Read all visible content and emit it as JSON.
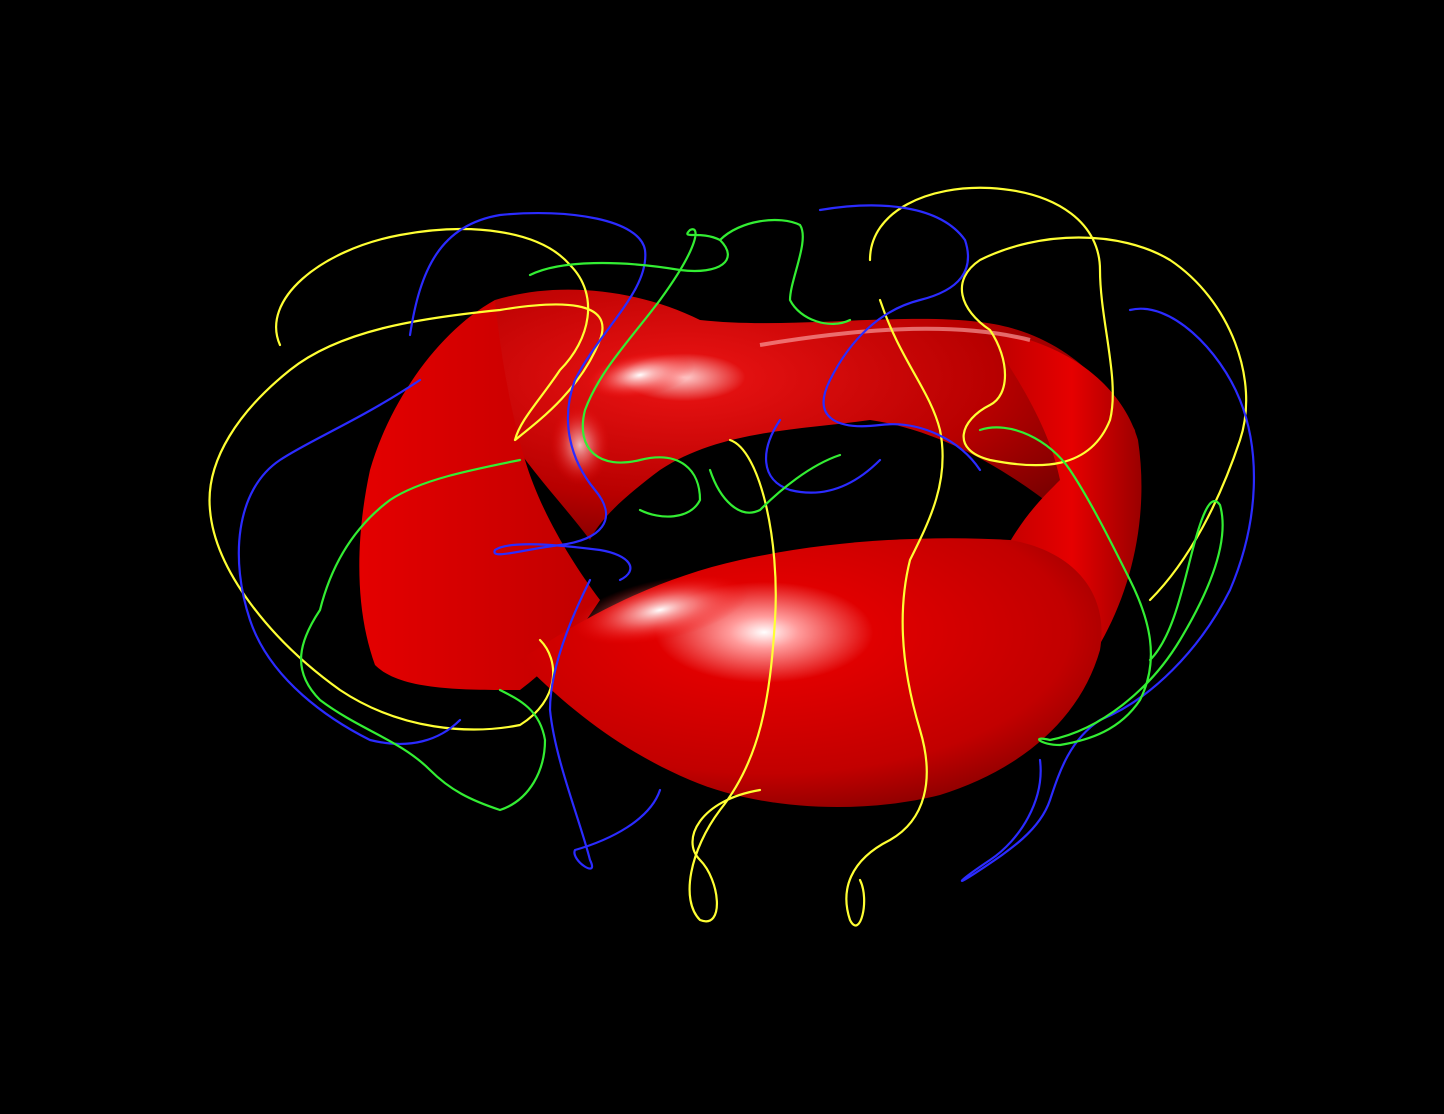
{
  "scene": {
    "background": "#000000",
    "surface": {
      "shape": "twisted-torus",
      "color": "#d00000",
      "highlight": "#ffffff"
    },
    "coils": [
      {
        "color": "#ffff33",
        "count": 2
      },
      {
        "color": "#2b2bff",
        "count": 2
      },
      {
        "color": "#33ee33",
        "count": 2
      }
    ]
  }
}
